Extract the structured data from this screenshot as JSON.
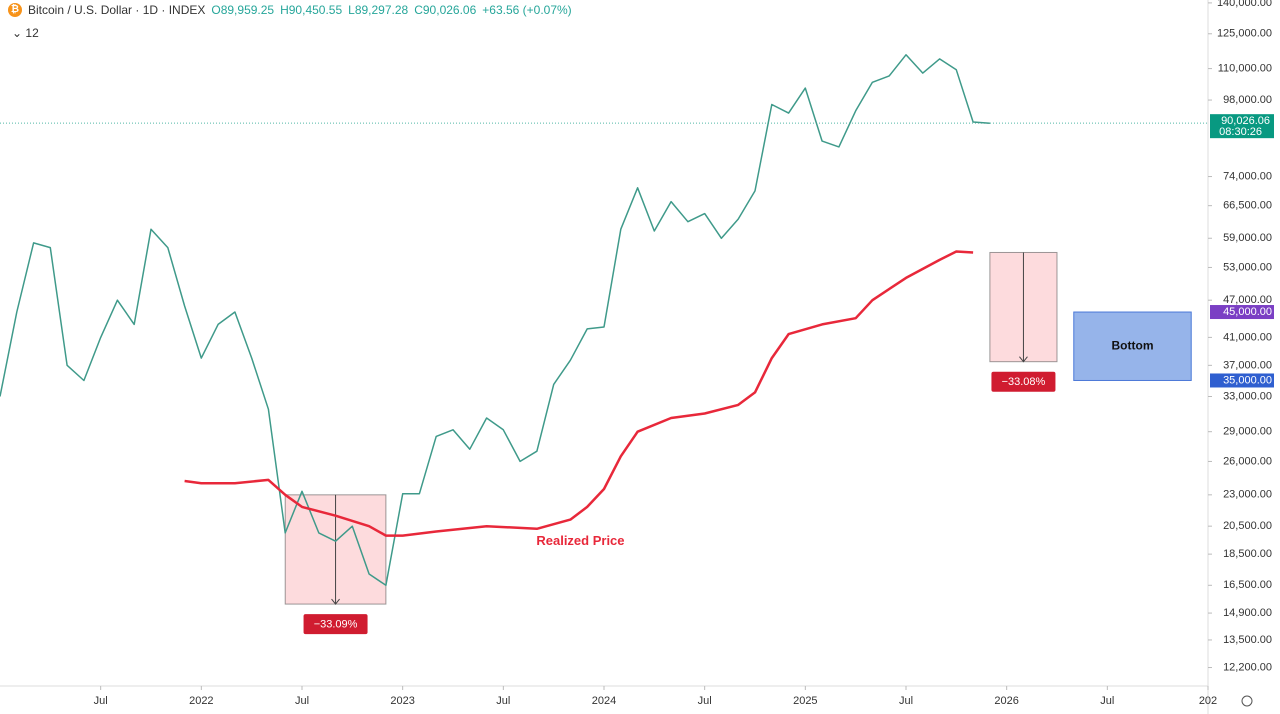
{
  "chart_data": {
    "type": "line",
    "title": "Bitcoin / U.S. Dollar · 1D · INDEX",
    "ohlc": [
      "O89,959.25",
      "H90,450.55",
      "L89,297.28",
      "C90,026.06"
    ],
    "change": "+63.56 (+0.07%)",
    "indicator_count": "12",
    "log_scale": true,
    "xlim": [
      "2021-01",
      "2027-01"
    ],
    "xticks": [
      {
        "value": "2021-07",
        "label": "Jul"
      },
      {
        "value": "2022-01",
        "label": "2022"
      },
      {
        "value": "2022-07",
        "label": "Jul"
      },
      {
        "value": "2023-01",
        "label": "2023"
      },
      {
        "value": "2023-07",
        "label": "Jul"
      },
      {
        "value": "2024-01",
        "label": "2024"
      },
      {
        "value": "2024-07",
        "label": "Jul"
      },
      {
        "value": "2025-01",
        "label": "2025"
      },
      {
        "value": "2025-07",
        "label": "Jul"
      },
      {
        "value": "2026-01",
        "label": "2026"
      },
      {
        "value": "2026-07",
        "label": "Jul"
      },
      {
        "value": "2027-01",
        "label": "202"
      }
    ],
    "ylim": [
      11400,
      141500
    ],
    "yticks": [
      {
        "value": 140000,
        "label": "140,000.00"
      },
      {
        "value": 125000,
        "label": "125,000.00"
      },
      {
        "value": 110000,
        "label": "110,000.00"
      },
      {
        "value": 98000,
        "label": "98,000.00"
      },
      {
        "value": 74000,
        "label": "74,000.00"
      },
      {
        "value": 66500,
        "label": "66,500.00"
      },
      {
        "value": 59000,
        "label": "59,000.00"
      },
      {
        "value": 53000,
        "label": "53,000.00"
      },
      {
        "value": 47000,
        "label": "47,000.00"
      },
      {
        "value": 41000,
        "label": "41,000.00"
      },
      {
        "value": 37000,
        "label": "37,000.00"
      },
      {
        "value": 33000,
        "label": "33,000.00"
      },
      {
        "value": 29000,
        "label": "29,000.00"
      },
      {
        "value": 26000,
        "label": "26,000.00"
      },
      {
        "value": 23000,
        "label": "23,000.00"
      },
      {
        "value": 20500,
        "label": "20,500.00"
      },
      {
        "value": 18500,
        "label": "18,500.00"
      },
      {
        "value": 16500,
        "label": "16,500.00"
      },
      {
        "value": 14900,
        "label": "14,900.00"
      },
      {
        "value": 13500,
        "label": "13,500.00"
      },
      {
        "value": 12200,
        "label": "12,200.00"
      }
    ],
    "series": [
      {
        "color": "#3f9a8a",
        "x": [
          "2021-01",
          "2021-02",
          "2021-03",
          "2021-04",
          "2021-05",
          "2021-06",
          "2021-07",
          "2021-08",
          "2021-09",
          "2021-10",
          "2021-11",
          "2021-12",
          "2022-01",
          "2022-02",
          "2022-03",
          "2022-04",
          "2022-05",
          "2022-06",
          "2022-07",
          "2022-08",
          "2022-09",
          "2022-10",
          "2022-11",
          "2022-12",
          "2023-01",
          "2023-02",
          "2023-03",
          "2023-04",
          "2023-05",
          "2023-06",
          "2023-07",
          "2023-08",
          "2023-09",
          "2023-10",
          "2023-11",
          "2023-12",
          "2024-01",
          "2024-02",
          "2024-03",
          "2024-04",
          "2024-05",
          "2024-06",
          "2024-07",
          "2024-08",
          "2024-09",
          "2024-10",
          "2024-11",
          "2024-12",
          "2025-01",
          "2025-02",
          "2025-03",
          "2025-04",
          "2025-05",
          "2025-06",
          "2025-07",
          "2025-08",
          "2025-09",
          "2025-10",
          "2025-11",
          "2025-12"
        ],
        "values": [
          33000,
          45000,
          58000,
          57000,
          37000,
          35000,
          41000,
          47000,
          43000,
          61000,
          57000,
          46000,
          38000,
          43000,
          45000,
          38000,
          31500,
          20000,
          23300,
          20000,
          19400,
          20500,
          17200,
          16500,
          23100,
          23100,
          28500,
          29200,
          27200,
          30500,
          29200,
          26000,
          27000,
          34500,
          37700,
          42300,
          42600,
          61000,
          71000,
          60600,
          67500,
          62700,
          64600,
          59000,
          63300,
          70200,
          96400,
          93400,
          102400,
          84300,
          82500,
          94200,
          104600,
          107100,
          115700,
          108200,
          114000,
          109500,
          90400,
          90026.06
        ]
      },
      {
        "name": "Realized Price",
        "color": "#e8283a",
        "x": [
          "2021-12",
          "2022-01",
          "2022-03",
          "2022-05",
          "2022-06",
          "2022-07",
          "2022-09",
          "2022-11",
          "2022-12",
          "2023-01",
          "2023-03",
          "2023-06",
          "2023-09",
          "2023-11",
          "2023-12",
          "2024-01",
          "2024-02",
          "2024-03",
          "2024-05",
          "2024-07",
          "2024-09",
          "2024-10",
          "2024-11",
          "2024-12",
          "2025-02",
          "2025-04",
          "2025-05",
          "2025-07",
          "2025-09",
          "2025-10",
          "2025-11"
        ],
        "values": [
          24200,
          24000,
          24000,
          24300,
          23000,
          22000,
          21300,
          20500,
          19800,
          19800,
          20100,
          20500,
          20300,
          21000,
          22000,
          23500,
          26500,
          29000,
          30500,
          31000,
          32000,
          33500,
          38000,
          41500,
          43000,
          44000,
          47000,
          51000,
          54500,
          56200,
          56000
        ]
      }
    ],
    "price_tag": {
      "value": 90026.06,
      "label": "90,026.06",
      "countdown": "08:30:26",
      "color": "#089981"
    },
    "level_tags": [
      {
        "value": 45000,
        "label": "45,000.00",
        "color": "#7b3fc4"
      },
      {
        "value": 35000,
        "label": "35,000.00",
        "color": "#2f5fd0"
      }
    ],
    "drawdowns": [
      {
        "label": "−33.09%",
        "x": [
          "2022-06",
          "2022-12"
        ],
        "y": [
          23000,
          15400
        ]
      },
      {
        "label": "−33.08%",
        "x": [
          "2025-12",
          "2026-04"
        ],
        "y": [
          56000,
          37500
        ]
      }
    ],
    "bottom_zone": {
      "label": "Bottom",
      "x": [
        "2026-05",
        "2026-12"
      ],
      "y": [
        45000,
        35000
      ]
    }
  }
}
